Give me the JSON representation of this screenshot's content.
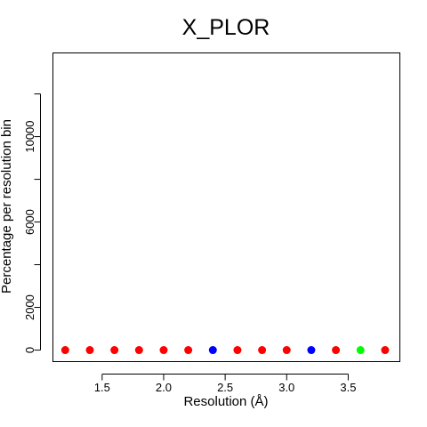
{
  "chart_data": {
    "type": "scatter",
    "title": "X_PLOR",
    "xlabel": "Resolution (Å)",
    "ylabel": "Percentage per resolution bin",
    "xlim": [
      1.1,
      3.92
    ],
    "ylim": [
      -540,
      13920
    ],
    "x_ticks": [
      1.5,
      2.0,
      2.5,
      3.0,
      3.5
    ],
    "x_tick_labels": [
      "1.5",
      "2.0",
      "2.5",
      "3.0",
      "3.5"
    ],
    "x_minor_ticks": [
      1.0,
      3.0
    ],
    "y_ticks": [
      0,
      2000,
      6000,
      10000
    ],
    "y_tick_labels": [
      "0",
      "2000",
      "6000",
      "10000"
    ],
    "y_minor_ticks": [
      4000,
      8000,
      12000
    ],
    "grid": false,
    "points": [
      {
        "x": 1.2,
        "y": 0,
        "color": "#ff0000"
      },
      {
        "x": 1.4,
        "y": 0,
        "color": "#ff0000"
      },
      {
        "x": 1.6,
        "y": 0,
        "color": "#ff0000"
      },
      {
        "x": 1.8,
        "y": 0,
        "color": "#ff0000"
      },
      {
        "x": 2.0,
        "y": 0,
        "color": "#ff0000"
      },
      {
        "x": 2.2,
        "y": 0,
        "color": "#ff0000"
      },
      {
        "x": 2.4,
        "y": 0,
        "color": "#0000ff"
      },
      {
        "x": 2.6,
        "y": 0,
        "color": "#ff0000"
      },
      {
        "x": 2.8,
        "y": 0,
        "color": "#ff0000"
      },
      {
        "x": 3.0,
        "y": 0,
        "color": "#ff0000"
      },
      {
        "x": 3.2,
        "y": 0,
        "color": "#0000ff"
      },
      {
        "x": 3.4,
        "y": 0,
        "color": "#ff0000"
      },
      {
        "x": 3.6,
        "y": 0,
        "color": "#00ff00"
      },
      {
        "x": 3.8,
        "y": 0,
        "color": "#ff0000"
      }
    ]
  }
}
